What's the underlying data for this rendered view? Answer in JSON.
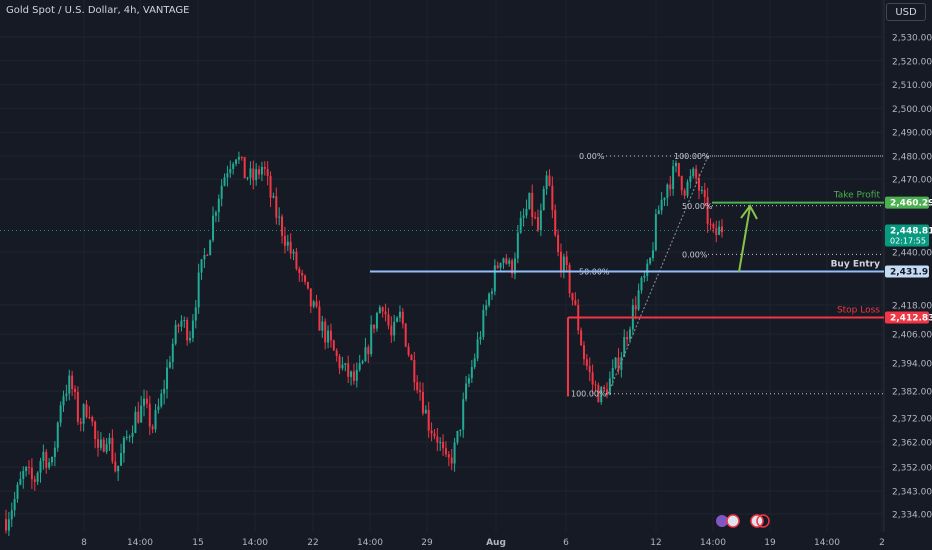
{
  "title": "Gold Spot / U.S. Dollar, 4h, VANTAGE",
  "currency_button": "USD",
  "colors": {
    "background": "#161a25",
    "up": "#22ab94",
    "down": "#f23645",
    "take_profit": "#4caf50",
    "stop_loss": "#f23645",
    "entry": "#90bff9",
    "arrow": "#8bc34a",
    "last_price": "#089981"
  },
  "chart_data": {
    "type": "candlestick",
    "symbol": "Gold Spot / U.S. Dollar",
    "interval": "4h",
    "broker": "VANTAGE",
    "y_tick_labels": [
      "2,530.00",
      "2,520.00",
      "2,510.00",
      "2,500.00",
      "2,490.00",
      "2,480.00",
      "2,470.00",
      "2,440.00",
      "2,418.00",
      "2,406.00",
      "2,394.00",
      "2,382.00",
      "2,372.00",
      "2,362.00",
      "2,352.00",
      "2,343.00",
      "2,334.00"
    ],
    "x_tick_labels": [
      "8",
      "14:00",
      "15",
      "14:00",
      "22",
      "14:00",
      "29",
      "Aug",
      "6",
      "12",
      "14:00",
      "19",
      "14:00",
      "2"
    ],
    "price_path": [
      2332,
      2340,
      2350,
      2346,
      2358,
      2352,
      2380,
      2386,
      2370,
      2378,
      2356,
      2366,
      2350,
      2362,
      2372,
      2376,
      2368,
      2380,
      2400,
      2412,
      2406,
      2428,
      2444,
      2462,
      2474,
      2482,
      2472,
      2470,
      2476,
      2460,
      2450,
      2440,
      2430,
      2420,
      2412,
      2404,
      2396,
      2390,
      2386,
      2394,
      2410,
      2420,
      2404,
      2414,
      2396,
      2384,
      2370,
      2364,
      2352,
      2360,
      2380,
      2396,
      2412,
      2428,
      2440,
      2432,
      2450,
      2460,
      2448,
      2472,
      2440,
      2432,
      2416,
      2396,
      2384,
      2380,
      2388,
      2398,
      2412,
      2424,
      2432,
      2456,
      2468,
      2474,
      2466,
      2472,
      2460,
      2446,
      2450
    ],
    "levels": [
      {
        "label": "Take Profit",
        "price": 2460.29,
        "price_label": "2,460.29"
      },
      {
        "label": "Buy Entry",
        "price": 2431.92,
        "price_label": "2,431.92"
      },
      {
        "label": "Stop Loss",
        "price": 2412.83,
        "price_label": "2,412.83"
      }
    ],
    "last_price": {
      "price": 2448.81,
      "price_label": "2,448.81",
      "countdown": "02:17:55"
    },
    "fib_levels": [
      {
        "label": "0.00%",
        "price": 2480
      },
      {
        "label": "50.00%",
        "price": 2431.9
      },
      {
        "label": "100.00%",
        "price": 2381
      }
    ],
    "fib_retracement_levels": [
      {
        "label": "100.00%",
        "price": 2480
      },
      {
        "label": "50.00%",
        "price": 2459
      },
      {
        "label": "0.00%",
        "price": 2439
      }
    ]
  }
}
